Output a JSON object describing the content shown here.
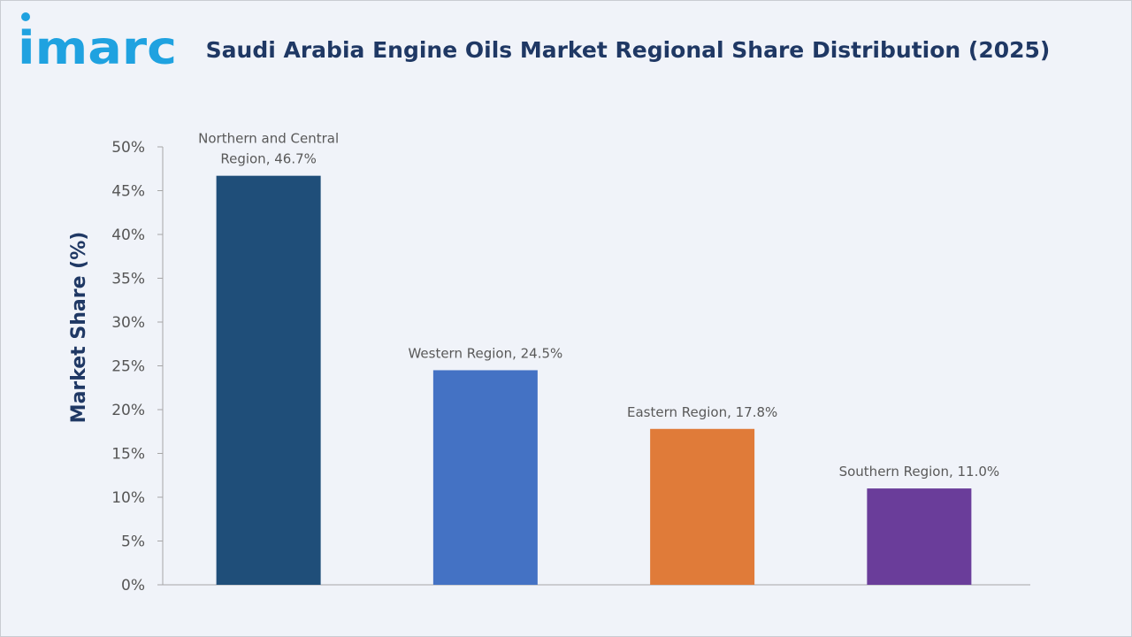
{
  "brand": {
    "logo_text": "imarc",
    "logo_color": "#1fa2e0"
  },
  "chart_data": {
    "type": "bar",
    "title": "Saudi Arabia Engine Oils Market Regional Share Distribution (2025)",
    "ylabel": "Market Share (%)",
    "xlabel": "",
    "ylim": [
      0,
      50
    ],
    "ytick_step": 5,
    "ytick_labels": [
      "0%",
      "5%",
      "10%",
      "15%",
      "20%",
      "25%",
      "30%",
      "35%",
      "40%",
      "45%",
      "50%"
    ],
    "grid": false,
    "categories": [
      "Northern and Central Region",
      "Western Region",
      "Eastern Region",
      "Southern Region"
    ],
    "values": [
      46.7,
      24.5,
      17.8,
      11.0
    ],
    "data_labels": [
      [
        "Northern and Central",
        "Region, 46.7%"
      ],
      [
        "Western Region, 24.5%"
      ],
      [
        "Eastern Region, 17.8%"
      ],
      [
        "Southern Region, 11.0%"
      ]
    ],
    "colors": [
      "#1f4e79",
      "#4472c4",
      "#e07b39",
      "#6a3d9a"
    ]
  }
}
